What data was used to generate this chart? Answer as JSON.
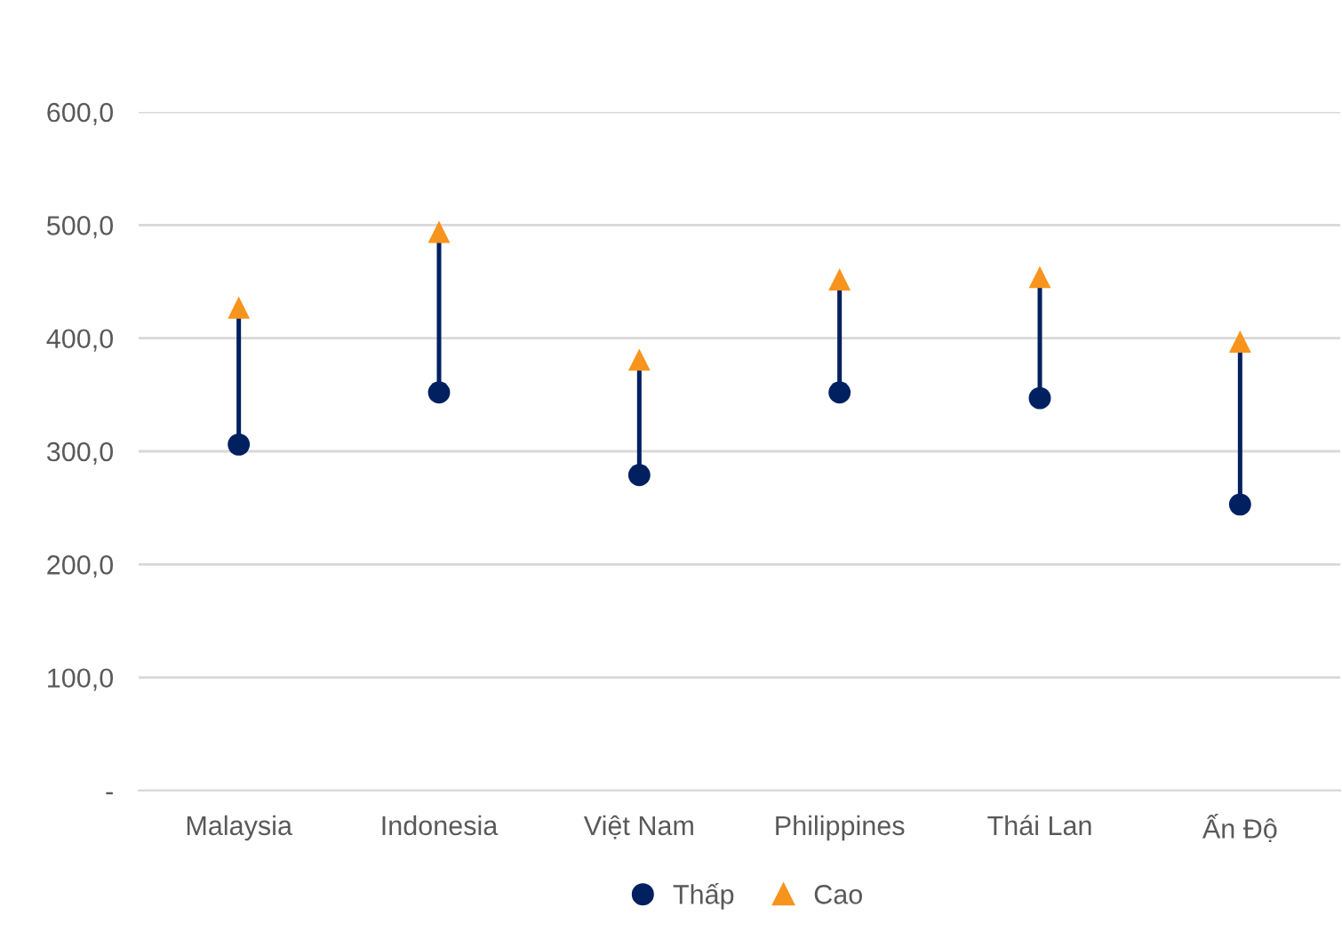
{
  "chart_data": {
    "type": "scatter",
    "categories": [
      "Malaysia",
      "Indonesia",
      "Việt Nam",
      "Philippines",
      "Thái Lan",
      "Ấn Độ"
    ],
    "series": [
      {
        "name": "Thấp",
        "color": "#002060",
        "marker": "circle",
        "values": [
          306,
          352,
          279,
          352,
          347,
          253
        ]
      },
      {
        "name": "Cao",
        "color": "#f7941d",
        "marker": "triangle",
        "values": [
          427,
          494,
          381,
          452,
          454,
          397
        ]
      }
    ],
    "ylim": [
      0,
      600
    ],
    "yticks": [
      {
        "value": 0,
        "label": "-"
      },
      {
        "value": 100,
        "label": "100,0"
      },
      {
        "value": 200,
        "label": "200,0"
      },
      {
        "value": 300,
        "label": "300,0"
      },
      {
        "value": 400,
        "label": "400,0"
      },
      {
        "value": 500,
        "label": "500,0"
      },
      {
        "value": 600,
        "label": "600,0"
      }
    ],
    "grid": "y",
    "legend": "bottom"
  }
}
